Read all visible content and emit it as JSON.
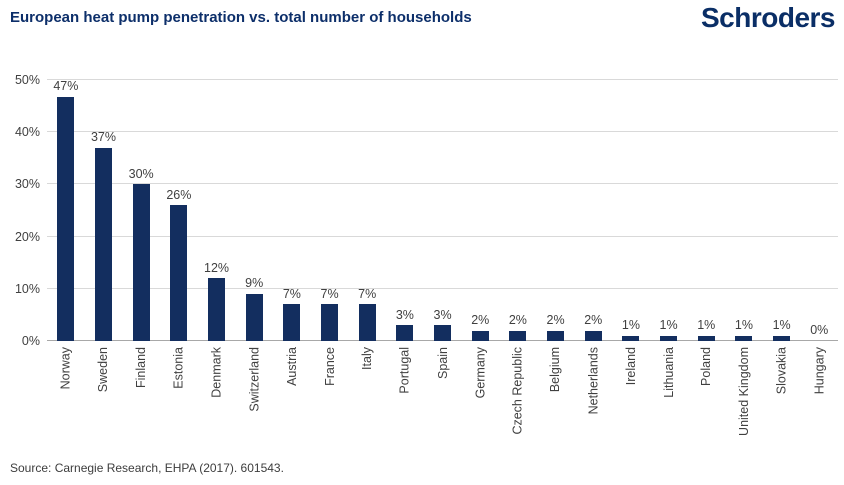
{
  "header": {
    "title": "European heat pump penetration vs. total number of households",
    "logo": "Schroders"
  },
  "source": {
    "text": "Source: Carnegie Research, EHPA (2017). 601543."
  },
  "chart_data": {
    "type": "bar",
    "title": "European heat pump penetration vs. total number of households",
    "categories": [
      "Norway",
      "Sweden",
      "Finland",
      "Estonia",
      "Denmark",
      "Switzerland",
      "Austria",
      "France",
      "Italy",
      "Portugal",
      "Spain",
      "Germany",
      "Czech Republic",
      "Belgium",
      "Netherlands",
      "Ireland",
      "Lithuania",
      "Poland",
      "United Kingdom",
      "Slovakia",
      "Hungary"
    ],
    "values": [
      47,
      37,
      30,
      26,
      12,
      9,
      7,
      7,
      7,
      3,
      3,
      2,
      2,
      2,
      2,
      1,
      1,
      1,
      1,
      1,
      0
    ],
    "value_labels": [
      "47%",
      "37%",
      "30%",
      "26%",
      "12%",
      "9%",
      "7%",
      "7%",
      "7%",
      "3%",
      "3%",
      "2%",
      "2%",
      "2%",
      "2%",
      "1%",
      "1%",
      "1%",
      "1%",
      "1%",
      "0%"
    ],
    "xlabel": "",
    "ylabel": "",
    "ylim": [
      0,
      50
    ],
    "yticks": [
      0,
      10,
      20,
      30,
      40,
      50
    ],
    "ytick_labels": [
      "0%",
      "10%",
      "20%",
      "30%",
      "40%",
      "50%"
    ],
    "grid": true,
    "legend": false,
    "bar_color": "#132e5f",
    "grid_color": "#d9d9d9",
    "axis_color": "#a8a8a8",
    "label_color": "#404040",
    "title_color": "#0d2f6a"
  }
}
